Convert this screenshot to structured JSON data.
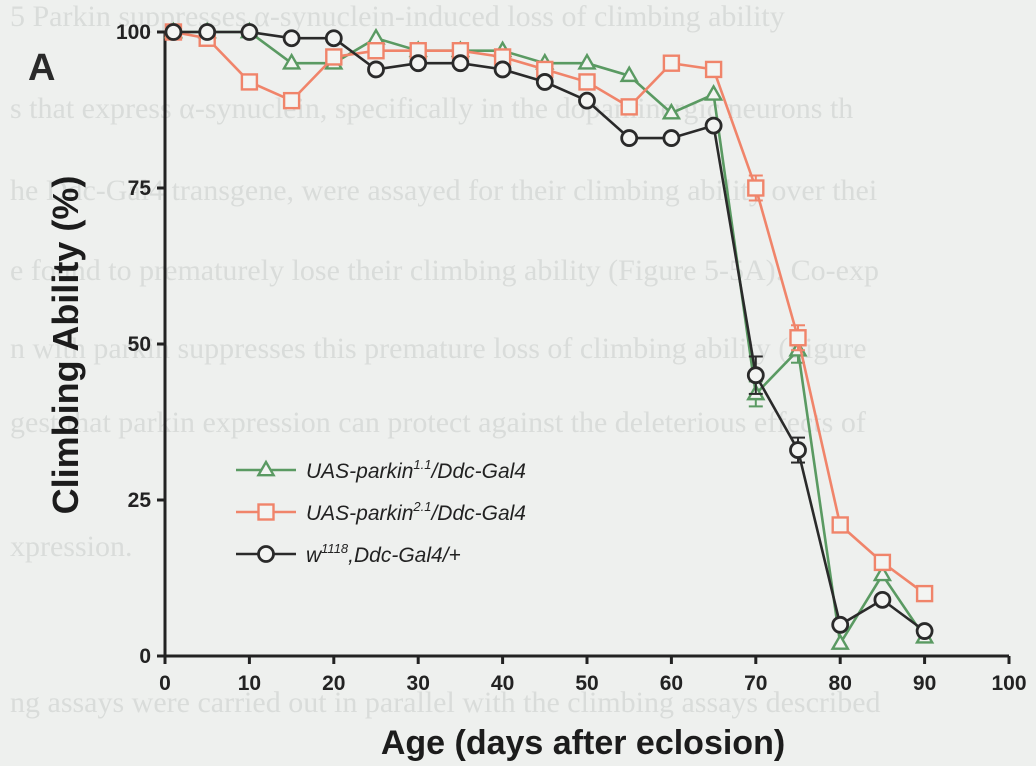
{
  "panel_label": "A",
  "background_text": [
    "5   Parkin suppresses α-synuclein-induced loss of climbing ability",
    "s that express α-synuclein, specifically in the dopaminergic neurons th",
    "he Ddc-Gal4 transgene, were assayed for their climbing ability over thei",
    "e found to prematurely lose their climbing ability (Figure 5-5A). Co-exp",
    "n with parkin suppresses this premature loss of climbing ability (Figure",
    "gest that parkin expression can protect against the deleterious effects of",
    "xpression.",
    "ng assays were carried out in parallel with the climbing assays described"
  ],
  "colors": {
    "parkin11": "#5a9a62",
    "parkin21": "#f0846a",
    "w1118": "#2a2a2a"
  },
  "chart_data": {
    "type": "line",
    "xlabel": "Age (days after eclosion)",
    "ylabel": "Climbing Ability (%)",
    "xlim": [
      0,
      100
    ],
    "ylim": [
      0,
      100
    ],
    "x_ticks": [
      "0",
      "10",
      "20",
      "30",
      "40",
      "50",
      "60",
      "70",
      "80",
      "90",
      "100"
    ],
    "y_ticks": [
      "0",
      "25",
      "50",
      "75",
      "100"
    ],
    "legend_position": "center-left",
    "series": [
      {
        "name": "UAS-parkin1.1/Ddc-Gal4",
        "name_parts": [
          "UAS-parkin",
          "1.1",
          "/Ddc-Gal4"
        ],
        "marker": "triangle",
        "color_key": "parkin11",
        "points": [
          [
            1,
            100
          ],
          [
            5,
            100
          ],
          [
            10,
            100
          ],
          [
            15,
            95
          ],
          [
            20,
            95
          ],
          [
            25,
            99
          ],
          [
            30,
            97
          ],
          [
            35,
            97
          ],
          [
            40,
            97
          ],
          [
            45,
            95
          ],
          [
            50,
            95
          ],
          [
            55,
            93
          ],
          [
            60,
            87
          ],
          [
            65,
            90
          ],
          [
            70,
            42
          ],
          [
            75,
            49
          ],
          [
            80,
            2
          ],
          [
            85,
            13
          ],
          [
            90,
            3
          ]
        ],
        "errors": [
          [
            70,
            2
          ],
          [
            75,
            2
          ]
        ]
      },
      {
        "name": "UAS-parkin2.1/Ddc-Gal4",
        "name_parts": [
          "UAS-parkin",
          "2.1",
          "/Ddc-Gal4"
        ],
        "marker": "square",
        "color_key": "parkin21",
        "points": [
          [
            1,
            100
          ],
          [
            5,
            99
          ],
          [
            10,
            92
          ],
          [
            15,
            89
          ],
          [
            20,
            96
          ],
          [
            25,
            97
          ],
          [
            30,
            97
          ],
          [
            35,
            97
          ],
          [
            40,
            96
          ],
          [
            45,
            94
          ],
          [
            50,
            92
          ],
          [
            55,
            88
          ],
          [
            60,
            95
          ],
          [
            65,
            94
          ],
          [
            70,
            75
          ],
          [
            75,
            51
          ],
          [
            80,
            21
          ],
          [
            85,
            15
          ],
          [
            90,
            10
          ]
        ],
        "errors": [
          [
            70,
            2
          ],
          [
            75,
            2
          ]
        ]
      },
      {
        "name": "w1118,Ddc-Gal4/+",
        "name_parts": [
          "w",
          "1118",
          ",Ddc-Gal4/+"
        ],
        "marker": "circle",
        "color_key": "w1118",
        "points": [
          [
            1,
            100
          ],
          [
            5,
            100
          ],
          [
            10,
            100
          ],
          [
            15,
            99
          ],
          [
            20,
            99
          ],
          [
            25,
            94
          ],
          [
            30,
            95
          ],
          [
            35,
            95
          ],
          [
            40,
            94
          ],
          [
            45,
            92
          ],
          [
            50,
            89
          ],
          [
            55,
            83
          ],
          [
            60,
            83
          ],
          [
            65,
            85
          ],
          [
            70,
            45
          ],
          [
            75,
            33
          ],
          [
            80,
            5
          ],
          [
            85,
            9
          ],
          [
            90,
            4
          ]
        ],
        "errors": [
          [
            70,
            3
          ],
          [
            75,
            2
          ]
        ]
      }
    ]
  }
}
